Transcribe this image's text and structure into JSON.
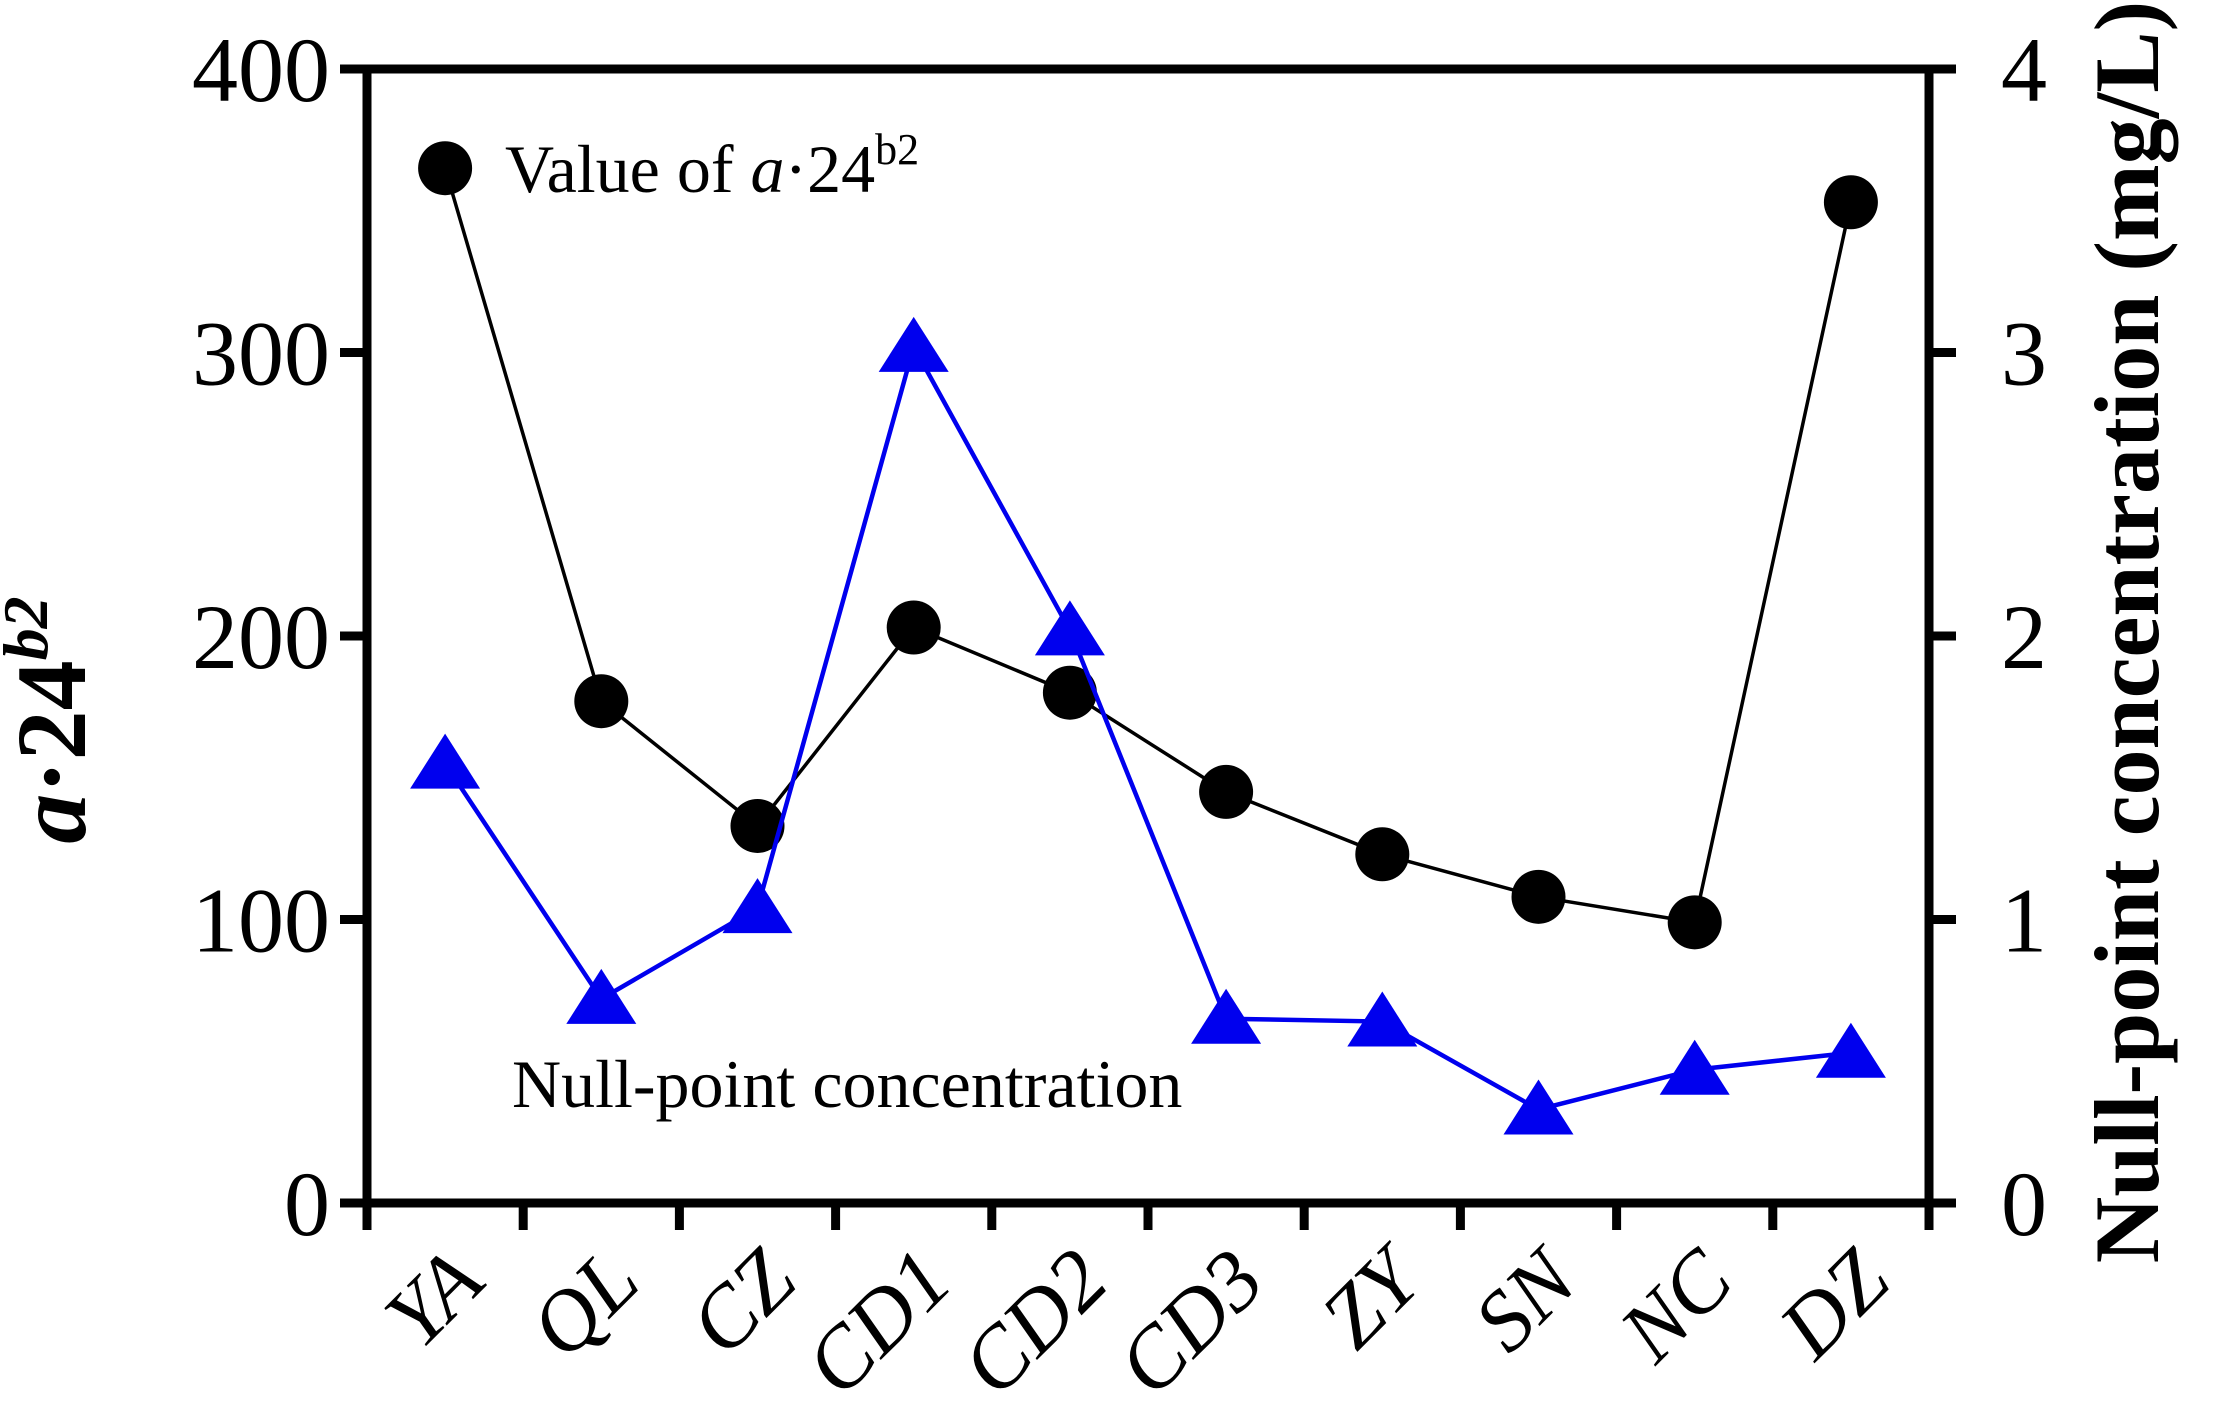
{
  "chart_data": {
    "type": "line",
    "categories": [
      "YA",
      "QL",
      "CZ",
      "CD1",
      "CD2",
      "CD3",
      "ZY",
      "SN",
      "NC",
      "DZ"
    ],
    "series": [
      {
        "name": "Value of a·24^b2",
        "axis": "left",
        "color": "#000000",
        "marker": "circle",
        "line_width": 3.5,
        "values": [
          365,
          177,
          133,
          203,
          180,
          145,
          123,
          108,
          99,
          353
        ]
      },
      {
        "name": "Null-point concentration",
        "axis": "right",
        "color": "#0000ee",
        "marker": "triangle-up",
        "line_width": 4.5,
        "values": [
          1.55,
          0.72,
          1.04,
          3.02,
          2.02,
          0.65,
          0.64,
          0.33,
          0.47,
          0.53
        ]
      }
    ],
    "left_axis": {
      "label": "a·24^b2",
      "min": 0,
      "max": 400,
      "ticks": [
        0,
        100,
        200,
        300,
        400
      ]
    },
    "right_axis": {
      "label": "Null-point concentration (mg/L)",
      "min": 0,
      "max": 4,
      "ticks": [
        0,
        1,
        2,
        3,
        4
      ]
    },
    "grid": false,
    "legend_position": "inline-annotations"
  },
  "labels": {
    "series1_annotation": {
      "prefix": "Value of ",
      "italic_var": "a",
      "dot_base": "·24",
      "sup": "b2"
    },
    "series2_annotation": "Null-point concentration",
    "left_title": {
      "italic_var": "a",
      "dot_base": "·24",
      "sup": "b2"
    },
    "right_title": "Null-point concentration (mg/L)"
  },
  "colors": {
    "series1": "#000000",
    "series2": "#0000ee"
  }
}
